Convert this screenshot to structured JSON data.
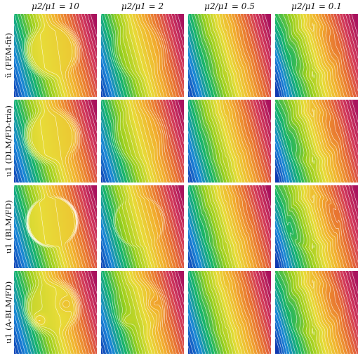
{
  "columns": [
    {
      "label": "μ2/μ1 = 10",
      "ratio": 10
    },
    {
      "label": "μ2/μ1 = 2",
      "ratio": 2
    },
    {
      "label": "μ2/μ1 = 0.5",
      "ratio": 0.5
    },
    {
      "label": "μ2/μ1 = 0.1",
      "ratio": 0.1
    }
  ],
  "rows": [
    {
      "label": "ũ (FEM-fit)",
      "inclusion": "smooth"
    },
    {
      "label": "u1 (DLM/FD-tria)",
      "inclusion": "smooth"
    },
    {
      "label": "u1 (BLM/FD)",
      "inclusion": "sharp"
    },
    {
      "label": "u1 (A-BLM/FD)",
      "inclusion": "two-peaks"
    }
  ],
  "colormap": [
    "#1038b0",
    "#1a86d8",
    "#16b46a",
    "#98cf1c",
    "#e8dc38",
    "#f2b02e",
    "#e87232",
    "#d2385a",
    "#a8125e"
  ],
  "contour_color": "#ffffff",
  "grid": "4x4"
}
